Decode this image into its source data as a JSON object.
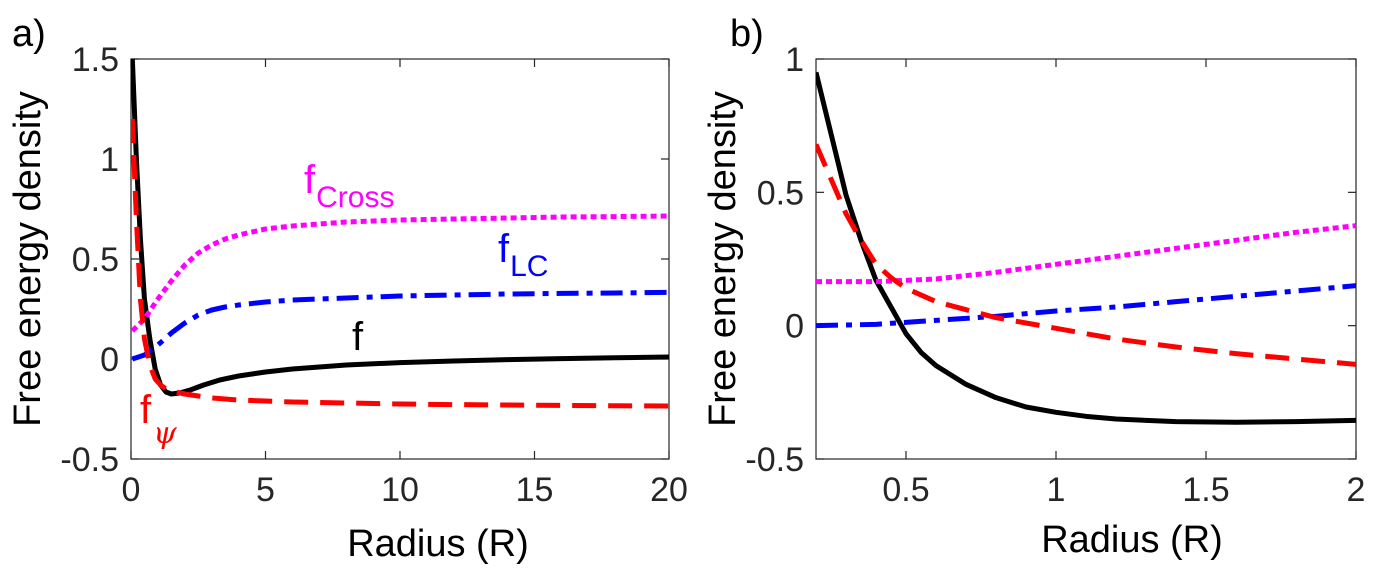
{
  "chart_data": [
    {
      "panel": "a)",
      "type": "line",
      "xlabel": "Radius (R)",
      "ylabel": "Free energy density",
      "xlim": [
        0,
        20
      ],
      "ylim": [
        -0.5,
        1.5
      ],
      "xticks": [
        "0",
        "5",
        "10",
        "15",
        "20"
      ],
      "yticks": [
        "-0.5",
        "0",
        "0.5",
        "1",
        "1.5"
      ],
      "series": [
        {
          "name": "f",
          "color": "#000000",
          "style": "solid",
          "x": [
            0.05,
            0.2,
            0.35,
            0.5,
            0.7,
            0.9,
            1.1,
            1.3,
            1.5,
            1.8,
            2.2,
            2.7,
            3.3,
            4,
            5,
            6,
            7,
            8,
            10,
            12,
            14,
            16,
            18,
            20
          ],
          "y": [
            1.5,
            1.0,
            0.6,
            0.3,
            0.1,
            -0.05,
            -0.13,
            -0.165,
            -0.175,
            -0.17,
            -0.155,
            -0.13,
            -0.105,
            -0.085,
            -0.065,
            -0.05,
            -0.04,
            -0.03,
            -0.018,
            -0.01,
            -0.003,
            0.002,
            0.006,
            0.01
          ]
        },
        {
          "name": "f_Cross",
          "color": "#ff00ff",
          "style": "dotted",
          "x": [
            0.05,
            0.5,
            1,
            1.5,
            2,
            2.5,
            3,
            3.5,
            4,
            5,
            6,
            7,
            8,
            10,
            12,
            14,
            16,
            18,
            20
          ],
          "y": [
            0.14,
            0.2,
            0.3,
            0.39,
            0.47,
            0.53,
            0.57,
            0.6,
            0.62,
            0.65,
            0.665,
            0.675,
            0.685,
            0.695,
            0.7,
            0.705,
            0.71,
            0.712,
            0.715
          ]
        },
        {
          "name": "f_LC",
          "color": "#0000ff",
          "style": "dashdot",
          "x": [
            0.05,
            0.5,
            1,
            1.5,
            2,
            2.5,
            3,
            3.5,
            4,
            5,
            6,
            7,
            8,
            10,
            12,
            14,
            16,
            18,
            20
          ],
          "y": [
            0.0,
            0.02,
            0.07,
            0.13,
            0.18,
            0.22,
            0.245,
            0.26,
            0.27,
            0.285,
            0.295,
            0.3,
            0.305,
            0.315,
            0.32,
            0.325,
            0.328,
            0.33,
            0.333
          ]
        },
        {
          "name": "f_psi",
          "color": "#ff0000",
          "style": "dashed",
          "x": [
            0.05,
            0.2,
            0.35,
            0.5,
            0.7,
            0.9,
            1.1,
            1.3,
            1.5,
            2,
            2.5,
            3,
            4,
            5,
            6,
            8,
            10,
            12,
            14,
            16,
            18,
            20
          ],
          "y": [
            1.2,
            0.7,
            0.3,
            0.1,
            -0.03,
            -0.1,
            -0.13,
            -0.15,
            -0.16,
            -0.175,
            -0.185,
            -0.195,
            -0.205,
            -0.21,
            -0.215,
            -0.22,
            -0.225,
            -0.228,
            -0.23,
            -0.232,
            -0.234,
            -0.235
          ]
        }
      ],
      "annotations": [
        {
          "base": "f",
          "sub": "Cross",
          "color": "#ff00ff"
        },
        {
          "base": "f",
          "sub": "LC",
          "color": "#0000ff"
        },
        {
          "base": "f",
          "sub": "",
          "color": "#000000"
        },
        {
          "base": "f",
          "sub": "ψ",
          "color": "#ff0000"
        }
      ]
    },
    {
      "panel": "b)",
      "type": "line",
      "xlabel": "Radius (R)",
      "ylabel": "Free energy density",
      "xlim": [
        0.2,
        2
      ],
      "ylim": [
        -0.5,
        1
      ],
      "xticks": [
        "0.5",
        "1",
        "1.5",
        "2"
      ],
      "yticks": [
        "-0.5",
        "0",
        "0.5",
        "1"
      ],
      "series": [
        {
          "name": "f",
          "color": "#000000",
          "style": "solid",
          "x": [
            0.2,
            0.25,
            0.3,
            0.35,
            0.4,
            0.45,
            0.5,
            0.55,
            0.6,
            0.7,
            0.8,
            0.9,
            1.0,
            1.1,
            1.2,
            1.4,
            1.6,
            1.8,
            2.0
          ],
          "y": [
            0.95,
            0.72,
            0.49,
            0.32,
            0.17,
            0.07,
            -0.03,
            -0.1,
            -0.15,
            -0.22,
            -0.27,
            -0.305,
            -0.325,
            -0.34,
            -0.35,
            -0.36,
            -0.362,
            -0.36,
            -0.355
          ]
        },
        {
          "name": "f_Cross",
          "color": "#ff00ff",
          "style": "dotted",
          "x": [
            0.2,
            0.4,
            0.6,
            0.8,
            1.0,
            1.2,
            1.4,
            1.6,
            1.8,
            2.0
          ],
          "y": [
            0.165,
            0.165,
            0.175,
            0.2,
            0.23,
            0.26,
            0.29,
            0.32,
            0.35,
            0.375
          ]
        },
        {
          "name": "f_LC",
          "color": "#0000ff",
          "style": "dashdot",
          "x": [
            0.2,
            0.4,
            0.6,
            0.8,
            1.0,
            1.2,
            1.4,
            1.6,
            1.8,
            2.0
          ],
          "y": [
            0.0,
            0.005,
            0.02,
            0.035,
            0.055,
            0.07,
            0.09,
            0.11,
            0.13,
            0.15
          ]
        },
        {
          "name": "f_psi",
          "color": "#ff0000",
          "style": "dashed",
          "x": [
            0.2,
            0.25,
            0.3,
            0.35,
            0.4,
            0.45,
            0.5,
            0.6,
            0.7,
            0.8,
            0.9,
            1.0,
            1.2,
            1.4,
            1.6,
            1.8,
            2.0
          ],
          "y": [
            0.68,
            0.55,
            0.42,
            0.32,
            0.23,
            0.18,
            0.14,
            0.09,
            0.06,
            0.03,
            0.01,
            -0.01,
            -0.05,
            -0.08,
            -0.105,
            -0.125,
            -0.145
          ]
        }
      ],
      "annotations": []
    }
  ]
}
